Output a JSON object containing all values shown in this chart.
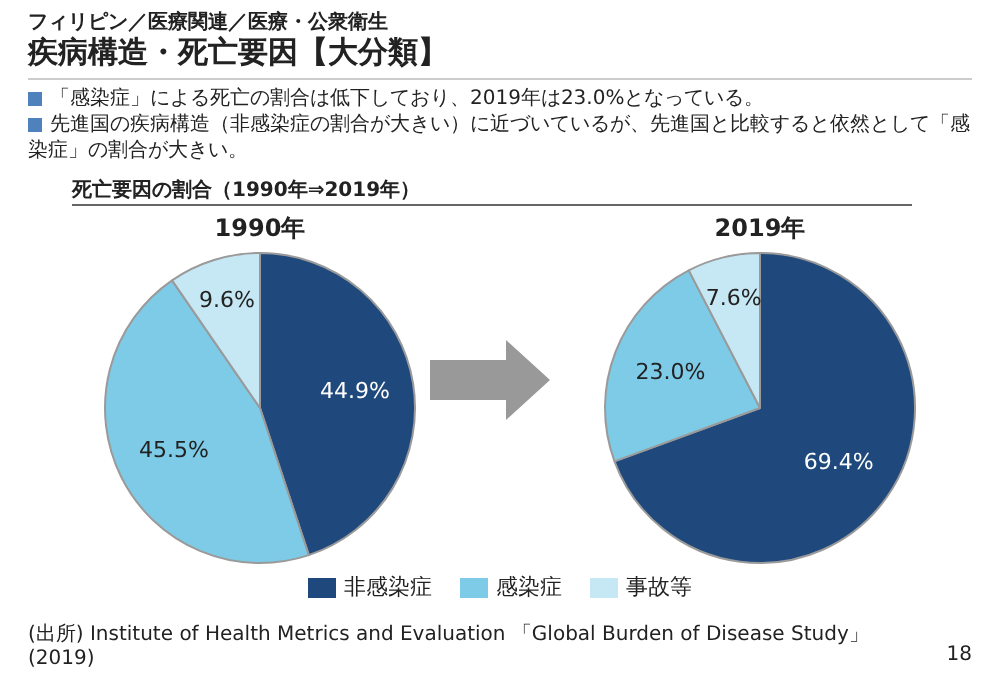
{
  "chart_data": [
    {
      "type": "pie",
      "title": "1990年",
      "categories": [
        "非感染症",
        "感染症",
        "事故等"
      ],
      "values": [
        44.9,
        45.5,
        9.6
      ],
      "value_labels": [
        "44.9%",
        "45.5%",
        "9.6%"
      ],
      "colors": [
        "#1f497d",
        "#7ecbe8",
        "#c6e7f4"
      ],
      "legend": "bottom",
      "annotations": [
        "フィリピン／医療関連／医療・公衆衛生",
        "疾病構造・死亡要因【大分類】",
        "「感染症」による死亡の割合は低下しており、2019年は23.0%となっている。",
        "先進国の疾病構造（非感染症の割合が大きい）に近づいているが、先進国と比較すると依然として「感染症」の割合が大きい。",
        "死亡要因の割合（1990年⇒2019年）"
      ]
    },
    {
      "type": "pie",
      "title": "2019年",
      "categories": [
        null,
        null,
        null
      ],
      "values": [
        69.4,
        23.0,
        7.6
      ],
      "value_labels": [
        "69.4%",
        "23.0%",
        "7.6%"
      ],
      "colors": [
        "#1f497d",
        "#7ecbe8",
        "#c6e7f4"
      ],
      "annotations": [
        "(出所) Institute of Health Metrics and Evaluation 「Global Burden of Disease Study」(2019)",
        "18"
      ]
    }
  ]
}
